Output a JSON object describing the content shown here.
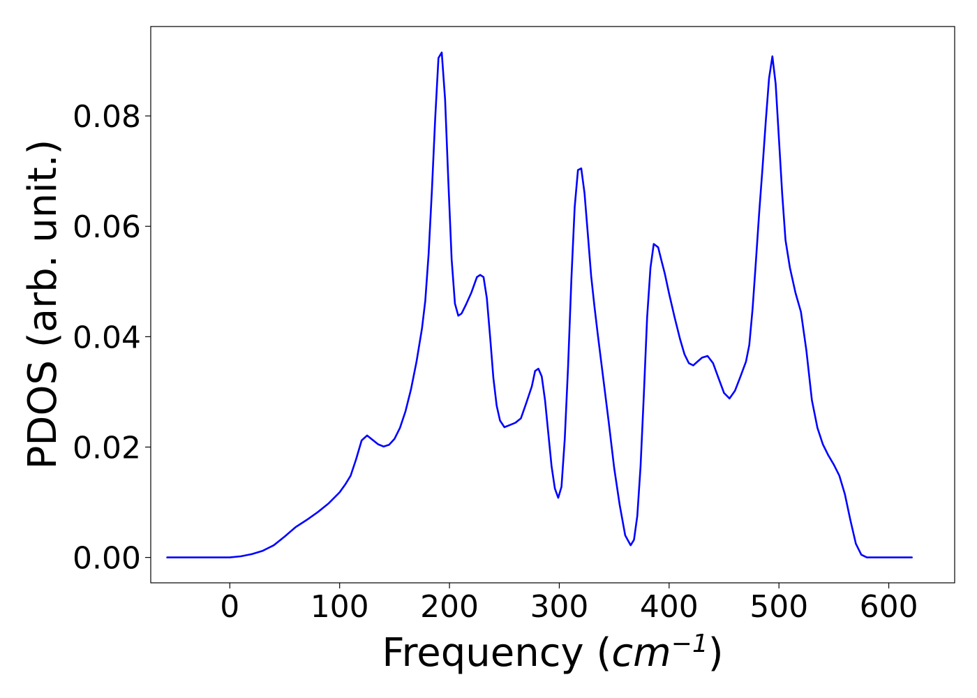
{
  "chart_data": {
    "type": "line",
    "title": "",
    "xlabel": "Frequency (",
    "xlabel_math": "cm",
    "xlabel_sup": "−1",
    "xlabel_close": ")",
    "ylabel": "PDOS (arb. unit.)",
    "xlim": [
      -72,
      660
    ],
    "ylim": [
      -0.0046,
      0.0962
    ],
    "xticks": [
      0,
      100,
      200,
      300,
      400,
      500,
      600
    ],
    "xtick_labels": [
      "0",
      "100",
      "200",
      "300",
      "400",
      "500",
      "600"
    ],
    "yticks": [
      0.0,
      0.02,
      0.04,
      0.06,
      0.08
    ],
    "ytick_labels": [
      "0.00",
      "0.02",
      "0.04",
      "0.06",
      "0.08"
    ],
    "grid": false,
    "legend": false,
    "series": [
      {
        "color": "#0000ff",
        "x": [
          -57,
          -40,
          -20,
          0,
          10,
          20,
          30,
          40,
          50,
          60,
          70,
          80,
          90,
          100,
          105,
          110,
          115,
          120,
          125,
          130,
          135,
          140,
          145,
          150,
          155,
          160,
          165,
          170,
          175,
          178,
          181,
          184,
          187,
          190,
          193,
          196,
          199,
          202,
          205,
          208,
          211,
          215,
          220,
          225,
          228,
          231,
          234,
          237,
          240,
          243,
          246,
          250,
          255,
          260,
          265,
          270,
          275,
          278,
          281,
          284,
          287,
          290,
          293,
          296,
          299,
          302,
          305,
          308,
          311,
          314,
          317,
          320,
          323,
          326,
          329,
          332,
          335,
          340,
          345,
          350,
          355,
          360,
          365,
          368,
          371,
          374,
          377,
          380,
          383,
          386,
          390,
          393,
          396,
          400,
          405,
          410,
          414,
          418,
          422,
          426,
          430,
          435,
          440,
          445,
          450,
          455,
          460,
          465,
          470,
          473,
          476,
          479,
          482,
          485,
          488,
          491,
          494,
          497,
          500,
          503,
          506,
          510,
          515,
          520,
          525,
          530,
          535,
          540,
          545,
          550,
          555,
          560,
          565,
          570,
          575,
          580,
          590,
          600,
          621
        ],
        "y": [
          0,
          0,
          0,
          0,
          0.0002,
          0.0006,
          0.0012,
          0.0022,
          0.0038,
          0.0055,
          0.0068,
          0.0082,
          0.0098,
          0.0118,
          0.0132,
          0.0148,
          0.0178,
          0.0212,
          0.0221,
          0.0213,
          0.0205,
          0.0201,
          0.0204,
          0.0215,
          0.0235,
          0.0265,
          0.0305,
          0.0355,
          0.0415,
          0.0465,
          0.055,
          0.0665,
          0.0795,
          0.0905,
          0.0915,
          0.083,
          0.068,
          0.054,
          0.046,
          0.0438,
          0.0442,
          0.0458,
          0.048,
          0.0508,
          0.0512,
          0.0508,
          0.047,
          0.04,
          0.0325,
          0.0275,
          0.0248,
          0.0236,
          0.024,
          0.0244,
          0.0252,
          0.028,
          0.031,
          0.0338,
          0.0342,
          0.0328,
          0.0285,
          0.0225,
          0.0165,
          0.0125,
          0.0108,
          0.0128,
          0.0215,
          0.0345,
          0.0505,
          0.0635,
          0.0702,
          0.0705,
          0.066,
          0.0585,
          0.051,
          0.0455,
          0.0405,
          0.0325,
          0.0245,
          0.0162,
          0.0095,
          0.004,
          0.0022,
          0.0032,
          0.0075,
          0.0165,
          0.0295,
          0.0435,
          0.0525,
          0.0568,
          0.0562,
          0.0538,
          0.0515,
          0.0478,
          0.0435,
          0.0395,
          0.0368,
          0.0352,
          0.0348,
          0.0355,
          0.0362,
          0.0365,
          0.0352,
          0.0325,
          0.0298,
          0.0288,
          0.0302,
          0.0328,
          0.0355,
          0.0385,
          0.045,
          0.0535,
          0.0625,
          0.0705,
          0.079,
          0.0868,
          0.0908,
          0.0858,
          0.0758,
          0.0658,
          0.0575,
          0.0525,
          0.048,
          0.0445,
          0.0375,
          0.0285,
          0.0235,
          0.0205,
          0.0185,
          0.0168,
          0.0148,
          0.0115,
          0.0068,
          0.0025,
          0.0005,
          0,
          0,
          0,
          0
        ]
      }
    ]
  }
}
